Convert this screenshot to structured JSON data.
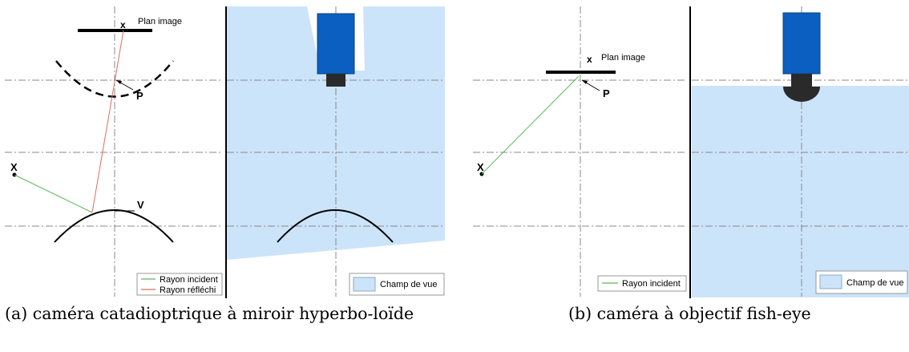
{
  "panel_a": {
    "caption": "(a) caméra catadioptrique à miroir hyperbo-loïde",
    "image_point": "x",
    "image_plane": "Plan image",
    "focus": "P",
    "world_point": "X",
    "vertex": "V",
    "legend": {
      "incident": "Rayon incident",
      "reflected": "Rayon réfléchi",
      "fov": "Champ de vue"
    }
  },
  "panel_b": {
    "caption": "(b) caméra à objectif fish-eye",
    "image_point": "x",
    "image_plane": "Plan image",
    "focus": "P",
    "world_point": "X",
    "legend": {
      "incident": "Rayon incident",
      "fov": "Champ de vue"
    }
  },
  "colors": {
    "fov": "#cce4fa",
    "camera": "#0b5fc0",
    "lens": "#2a2a2a",
    "incident_ray": "#5cb85c",
    "reflected_ray": "#d9705a",
    "axis": "#888888"
  }
}
